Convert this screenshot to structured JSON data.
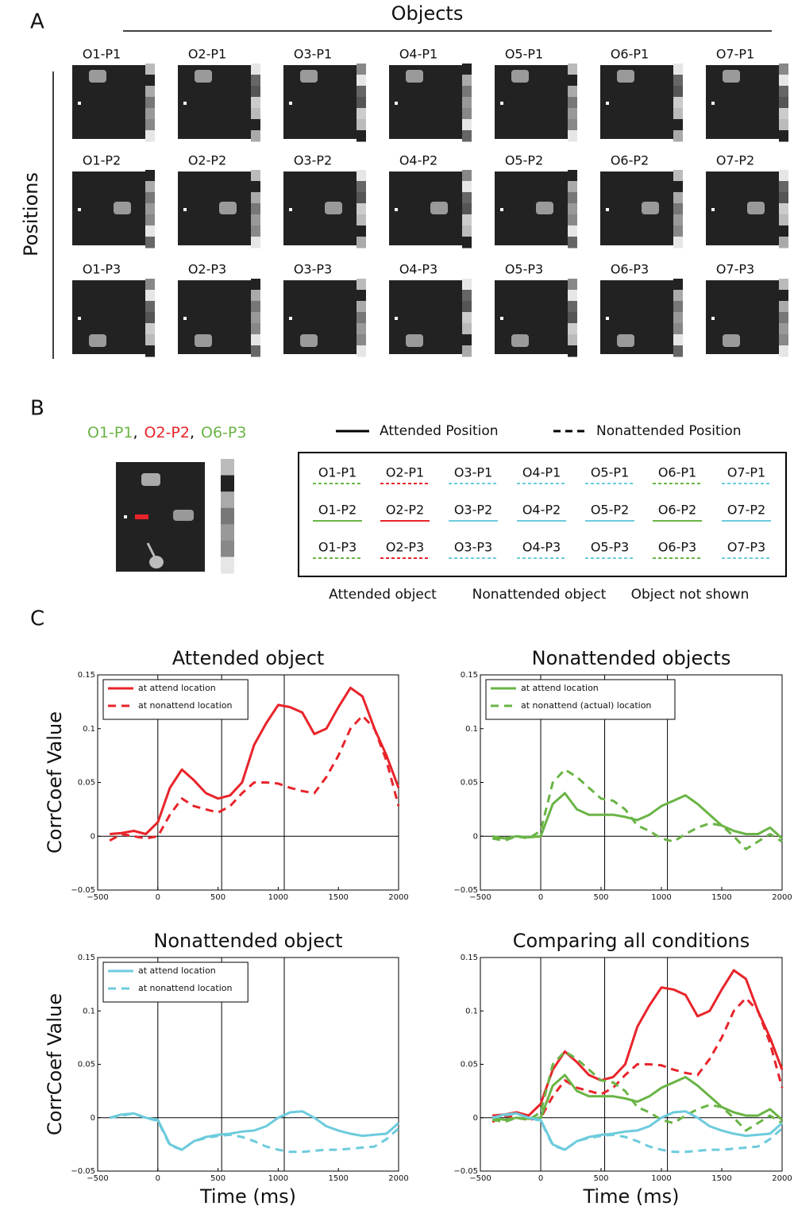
{
  "panel_a": {
    "label": "A",
    "column_title": "Objects",
    "row_title": "Positions",
    "cells": [
      [
        "O1-P1",
        "O2-P1",
        "O3-P1",
        "O4-P1",
        "O5-P1",
        "O6-P1",
        "O7-P1"
      ],
      [
        "O1-P2",
        "O2-P2",
        "O3-P2",
        "O4-P2",
        "O5-P2",
        "O6-P2",
        "O7-P2"
      ],
      [
        "O1-P3",
        "O2-P3",
        "O3-P3",
        "O4-P3",
        "O5-P3",
        "O6-P3",
        "O7-P3"
      ]
    ]
  },
  "panel_b": {
    "label": "B",
    "example": [
      {
        "text": "O1-P1",
        "color": "#6ab446"
      },
      {
        "text": "O2-P2",
        "color": "#e8242a"
      },
      {
        "text": "O6-P3",
        "color": "#6ab446"
      }
    ],
    "separator": ",",
    "position_legend": [
      {
        "text": "Attended Position",
        "dashed": false
      },
      {
        "text": "Nonattended Position",
        "dashed": true
      }
    ],
    "grid": {
      "rows": [
        [
          "O1-P1",
          "O2-P1",
          "O3-P1",
          "O4-P1",
          "O5-P1",
          "O6-P1",
          "O7-P1"
        ],
        [
          "O1-P2",
          "O2-P2",
          "O3-P2",
          "O4-P2",
          "O5-P2",
          "O6-P2",
          "O7-P2"
        ],
        [
          "O1-P3",
          "O2-P3",
          "O3-P3",
          "O4-P3",
          "O5-P3",
          "O6-P3",
          "O7-P3"
        ]
      ],
      "column_colors": [
        "#6ab446",
        "#e8242a",
        "#6ccbdc",
        "#6ccbdc",
        "#6ccbdc",
        "#6ab446",
        "#6ccbdc"
      ],
      "row_dashed": [
        true,
        false,
        true
      ]
    },
    "object_legend": [
      {
        "text": "Attended object",
        "color": "#e8242a"
      },
      {
        "text": "Nonattended object",
        "color": "#6ab446"
      },
      {
        "text": "Object not shown",
        "color": "#6ccbdc"
      }
    ]
  },
  "panel_c": {
    "label": "C"
  },
  "chart_data": [
    {
      "type": "line",
      "title": "Attended object",
      "ylabel": "CorrCoef Value",
      "legend": "upper left",
      "x": [
        -400,
        -300,
        -200,
        -100,
        0,
        100,
        200,
        300,
        400,
        500,
        600,
        700,
        800,
        900,
        1000,
        1100,
        1200,
        1300,
        1400,
        1500,
        1600,
        1700,
        1800,
        1900,
        2000
      ],
      "series": [
        {
          "name": "at attend location",
          "color": "#e8242a",
          "dashed": false,
          "values": [
            0.002,
            0.003,
            0.005,
            0.002,
            0.013,
            0.045,
            0.062,
            0.052,
            0.04,
            0.035,
            0.038,
            0.05,
            0.085,
            0.105,
            0.122,
            0.12,
            0.115,
            0.095,
            0.1,
            0.12,
            0.138,
            0.13,
            0.1,
            0.075,
            0.045
          ]
        },
        {
          "name": "at nonattend location",
          "color": "#e8242a",
          "dashed": true,
          "values": [
            -0.004,
            0.002,
            0.0,
            -0.002,
            0.0,
            0.02,
            0.035,
            0.028,
            0.025,
            0.022,
            0.028,
            0.04,
            0.05,
            0.05,
            0.049,
            0.045,
            0.042,
            0.04,
            0.055,
            0.075,
            0.1,
            0.112,
            0.1,
            0.07,
            0.028
          ]
        }
      ],
      "xlim": [
        -500,
        2000
      ],
      "ylim": [
        -0.05,
        0.15
      ],
      "xticks": [
        {
          "value": -500,
          "label": "−500"
        },
        0,
        500,
        1000,
        1500,
        2000
      ],
      "yticks": [
        {
          "value": -0.05,
          "label": "−0.05"
        },
        0,
        0.05,
        0.1,
        0.15
      ],
      "vlines": [
        0,
        530,
        1050
      ],
      "hline": 0
    },
    {
      "type": "line",
      "title": "Nonattended objects",
      "legend": "upper left",
      "x": [
        -400,
        -300,
        -200,
        -100,
        0,
        100,
        200,
        300,
        400,
        500,
        600,
        700,
        800,
        900,
        1000,
        1100,
        1200,
        1300,
        1400,
        1500,
        1600,
        1700,
        1800,
        1900,
        2000
      ],
      "series": [
        {
          "name": "at attend location",
          "color": "#6ab446",
          "dashed": false,
          "values": [
            0.0,
            -0.002,
            0.0,
            -0.001,
            0.0,
            0.03,
            0.04,
            0.025,
            0.02,
            0.02,
            0.02,
            0.018,
            0.015,
            0.02,
            0.028,
            0.033,
            0.038,
            0.03,
            0.02,
            0.01,
            0.005,
            0.002,
            0.002,
            0.008,
            -0.002
          ]
        },
        {
          "name": "at nonattend (actual) location",
          "color": "#6ab446",
          "dashed": true,
          "values": [
            -0.002,
            -0.004,
            0.0,
            -0.002,
            0.005,
            0.05,
            0.062,
            0.055,
            0.045,
            0.035,
            0.033,
            0.025,
            0.01,
            0.005,
            -0.002,
            -0.005,
            0.002,
            0.008,
            0.012,
            0.01,
            0.0,
            -0.012,
            -0.005,
            0.002,
            -0.005
          ]
        }
      ],
      "xlim": [
        -500,
        2000
      ],
      "ylim": [
        -0.05,
        0.15
      ],
      "xticks": [
        {
          "value": -500,
          "label": "−500"
        },
        0,
        500,
        1000,
        1500,
        2000
      ],
      "yticks": [
        {
          "value": -0.05,
          "label": "−0.05"
        },
        0,
        0.05,
        0.1,
        0.15
      ],
      "vlines": [
        0,
        530,
        1050
      ],
      "hline": 0
    },
    {
      "type": "line",
      "title": "Nonattended object",
      "ylabel": "CorrCoef Value",
      "xlabel": "Time (ms)",
      "legend": "upper left",
      "x": [
        -400,
        -300,
        -200,
        -100,
        0,
        100,
        200,
        300,
        400,
        500,
        600,
        700,
        800,
        900,
        1000,
        1100,
        1200,
        1300,
        1400,
        1500,
        1600,
        1700,
        1800,
        1900,
        2000
      ],
      "series": [
        {
          "name": "at attend location",
          "color": "#6ccbdc",
          "dashed": false,
          "values": [
            0.0,
            0.003,
            0.004,
            0.0,
            -0.002,
            -0.025,
            -0.03,
            -0.022,
            -0.018,
            -0.016,
            -0.015,
            -0.013,
            -0.012,
            -0.008,
            0.0,
            0.005,
            0.006,
            0.0,
            -0.008,
            -0.012,
            -0.015,
            -0.017,
            -0.016,
            -0.015,
            -0.005
          ]
        },
        {
          "name": "at nonattend location",
          "color": "#6ccbdc",
          "dashed": true,
          "values": [
            0.0,
            0.002,
            0.004,
            0.0,
            -0.003,
            -0.026,
            -0.03,
            -0.022,
            -0.019,
            -0.017,
            -0.016,
            -0.018,
            -0.022,
            -0.027,
            -0.03,
            -0.032,
            -0.032,
            -0.031,
            -0.03,
            -0.03,
            -0.029,
            -0.028,
            -0.027,
            -0.02,
            -0.01
          ]
        }
      ],
      "xlim": [
        -500,
        2000
      ],
      "ylim": [
        -0.05,
        0.15
      ],
      "xticks": [
        {
          "value": -500,
          "label": "−500"
        },
        0,
        500,
        1000,
        1500,
        2000
      ],
      "yticks": [
        {
          "value": -0.05,
          "label": "−0.05"
        },
        0,
        0.05,
        0.1,
        0.15
      ],
      "vlines": [
        0,
        530,
        1050
      ],
      "hline": 0
    },
    {
      "type": "line",
      "title": "Comparing all conditions",
      "xlabel": "Time (ms)",
      "x": [
        -400,
        -300,
        -200,
        -100,
        0,
        100,
        200,
        300,
        400,
        500,
        600,
        700,
        800,
        900,
        1000,
        1100,
        1200,
        1300,
        1400,
        1500,
        1600,
        1700,
        1800,
        1900,
        2000
      ],
      "series": [
        {
          "color": "#e8242a",
          "dashed": false,
          "values": [
            0.002,
            0.003,
            0.005,
            0.002,
            0.013,
            0.045,
            0.062,
            0.052,
            0.04,
            0.035,
            0.038,
            0.05,
            0.085,
            0.105,
            0.122,
            0.12,
            0.115,
            0.095,
            0.1,
            0.12,
            0.138,
            0.13,
            0.1,
            0.075,
            0.045
          ]
        },
        {
          "color": "#e8242a",
          "dashed": true,
          "values": [
            -0.004,
            0.002,
            0.0,
            -0.002,
            0.0,
            0.02,
            0.035,
            0.028,
            0.025,
            0.022,
            0.028,
            0.04,
            0.05,
            0.05,
            0.049,
            0.045,
            0.042,
            0.04,
            0.055,
            0.075,
            0.1,
            0.112,
            0.1,
            0.07,
            0.028
          ]
        },
        {
          "color": "#6ab446",
          "dashed": false,
          "values": [
            0.0,
            -0.002,
            0.0,
            -0.001,
            0.0,
            0.03,
            0.04,
            0.025,
            0.02,
            0.02,
            0.02,
            0.018,
            0.015,
            0.02,
            0.028,
            0.033,
            0.038,
            0.03,
            0.02,
            0.01,
            0.005,
            0.002,
            0.002,
            0.008,
            -0.002
          ]
        },
        {
          "color": "#6ab446",
          "dashed": true,
          "values": [
            -0.002,
            -0.004,
            0.0,
            -0.002,
            0.005,
            0.05,
            0.062,
            0.055,
            0.045,
            0.035,
            0.033,
            0.025,
            0.01,
            0.005,
            -0.002,
            -0.005,
            0.002,
            0.008,
            0.012,
            0.01,
            0.0,
            -0.012,
            -0.005,
            0.002,
            -0.005
          ]
        },
        {
          "color": "#6ccbdc",
          "dashed": false,
          "values": [
            0.0,
            0.003,
            0.004,
            0.0,
            -0.002,
            -0.025,
            -0.03,
            -0.022,
            -0.018,
            -0.016,
            -0.015,
            -0.013,
            -0.012,
            -0.008,
            0.0,
            0.005,
            0.006,
            0.0,
            -0.008,
            -0.012,
            -0.015,
            -0.017,
            -0.016,
            -0.015,
            -0.005
          ]
        },
        {
          "color": "#6ccbdc",
          "dashed": true,
          "values": [
            0.0,
            0.002,
            0.004,
            0.0,
            -0.003,
            -0.026,
            -0.03,
            -0.022,
            -0.019,
            -0.017,
            -0.016,
            -0.018,
            -0.022,
            -0.027,
            -0.03,
            -0.032,
            -0.032,
            -0.031,
            -0.03,
            -0.03,
            -0.029,
            -0.028,
            -0.027,
            -0.02,
            -0.01
          ]
        }
      ],
      "xlim": [
        -500,
        2000
      ],
      "ylim": [
        -0.05,
        0.15
      ],
      "xticks": [
        {
          "value": -500,
          "label": "−500"
        },
        0,
        500,
        1000,
        1500,
        2000
      ],
      "yticks": [
        {
          "value": -0.05,
          "label": "−0.05"
        },
        0,
        0.05,
        0.1,
        0.15
      ],
      "vlines": [
        0,
        530,
        1050
      ],
      "hline": 0
    }
  ]
}
